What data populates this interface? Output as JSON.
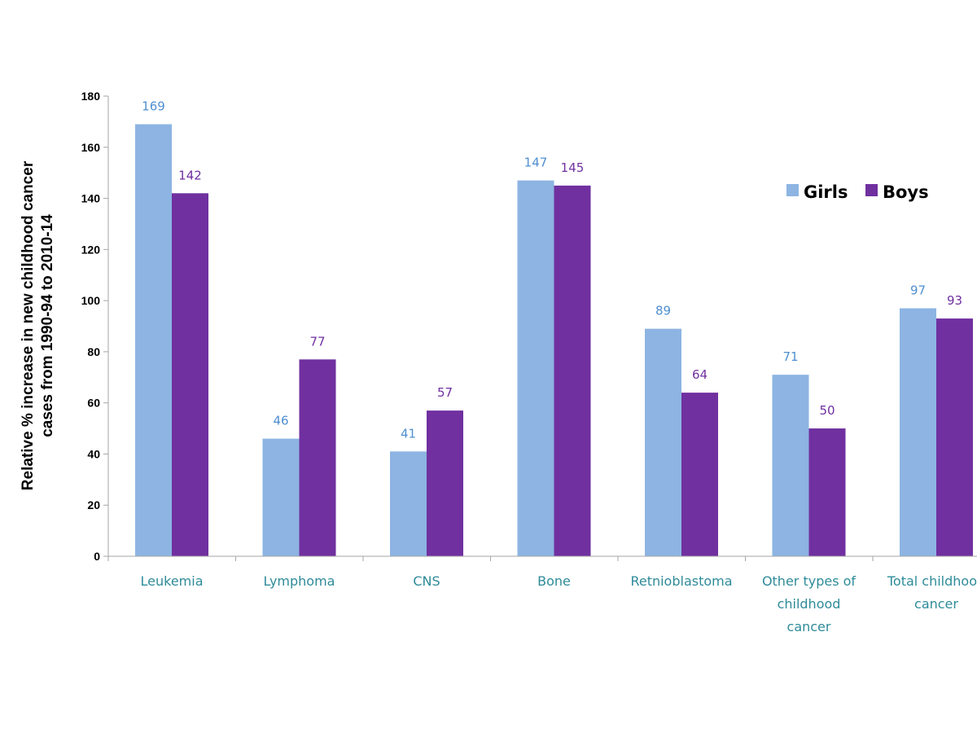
{
  "chart_data": {
    "type": "bar",
    "title": "",
    "xlabel": "",
    "ylabel_lines": [
      "Relative % increase in new childhood cancer",
      "cases  from 1990-94  to 2010-14"
    ],
    "ylim": [
      0,
      180
    ],
    "yticks": [
      0,
      20,
      40,
      60,
      80,
      100,
      120,
      140,
      160,
      180
    ],
    "grid": false,
    "legend_position": "top-right",
    "categories": [
      [
        "Leukemia"
      ],
      [
        "Lymphoma"
      ],
      [
        "CNS"
      ],
      [
        "Bone"
      ],
      [
        "Retnioblastoma"
      ],
      [
        "Other types of",
        "childhood",
        "cancer"
      ],
      [
        "Total childhood",
        "cancer"
      ]
    ],
    "series": [
      {
        "name": "Girls",
        "color": "#8db4e2",
        "label_color": "#4f8fd0",
        "values": [
          169,
          46,
          41,
          147,
          89,
          71,
          97
        ]
      },
      {
        "name": "Boys",
        "color": "#7030a0",
        "label_color": "#7030a0",
        "values": [
          142,
          77,
          57,
          145,
          64,
          50,
          93
        ]
      }
    ]
  }
}
